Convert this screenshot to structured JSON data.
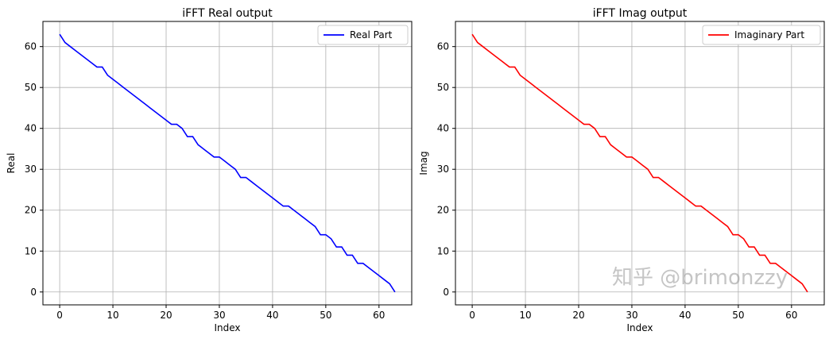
{
  "chart_data": [
    {
      "type": "line",
      "title": "iFFT Real output",
      "xlabel": "Index",
      "ylabel": "Real",
      "xlim": [
        -3.15,
        66.15
      ],
      "ylim": [
        -3.15,
        66.15
      ],
      "xticks": [
        0,
        10,
        20,
        30,
        40,
        50,
        60
      ],
      "yticks": [
        0,
        10,
        20,
        30,
        40,
        50,
        60
      ],
      "grid": true,
      "legend": "top-right",
      "series": [
        {
          "name": "Real Part",
          "color": "#0000ff",
          "x": [
            0,
            1,
            2,
            3,
            4,
            5,
            6,
            7,
            8,
            9,
            10,
            11,
            12,
            13,
            14,
            15,
            16,
            17,
            18,
            19,
            20,
            21,
            22,
            23,
            24,
            25,
            26,
            27,
            28,
            29,
            30,
            31,
            32,
            33,
            34,
            35,
            36,
            37,
            38,
            39,
            40,
            41,
            42,
            43,
            44,
            45,
            46,
            47,
            48,
            49,
            50,
            51,
            52,
            53,
            54,
            55,
            56,
            57,
            58,
            59,
            60,
            61,
            62,
            63
          ],
          "y": [
            63,
            61,
            60,
            59,
            58,
            57,
            56,
            55,
            55,
            53,
            52,
            51,
            50,
            49,
            48,
            47,
            46,
            45,
            44,
            43,
            42,
            41,
            41,
            40,
            38,
            38,
            36,
            35,
            34,
            33,
            33,
            32,
            31,
            30,
            28,
            28,
            27,
            26,
            25,
            24,
            23,
            22,
            21,
            21,
            20,
            19,
            18,
            17,
            16,
            14,
            14,
            13,
            11,
            11,
            9,
            9,
            7,
            7,
            6,
            5,
            4,
            3,
            2,
            0
          ]
        }
      ]
    },
    {
      "type": "line",
      "title": "iFFT Imag output",
      "xlabel": "Index",
      "ylabel": "Imag",
      "xlim": [
        -3.15,
        66.15
      ],
      "ylim": [
        -3.15,
        66.15
      ],
      "xticks": [
        0,
        10,
        20,
        30,
        40,
        50,
        60
      ],
      "yticks": [
        0,
        10,
        20,
        30,
        40,
        50,
        60
      ],
      "grid": true,
      "legend": "top-right",
      "series": [
        {
          "name": "Imaginary Part",
          "color": "#ff0000",
          "x": [
            0,
            1,
            2,
            3,
            4,
            5,
            6,
            7,
            8,
            9,
            10,
            11,
            12,
            13,
            14,
            15,
            16,
            17,
            18,
            19,
            20,
            21,
            22,
            23,
            24,
            25,
            26,
            27,
            28,
            29,
            30,
            31,
            32,
            33,
            34,
            35,
            36,
            37,
            38,
            39,
            40,
            41,
            42,
            43,
            44,
            45,
            46,
            47,
            48,
            49,
            50,
            51,
            52,
            53,
            54,
            55,
            56,
            57,
            58,
            59,
            60,
            61,
            62,
            63
          ],
          "y": [
            63,
            61,
            60,
            59,
            58,
            57,
            56,
            55,
            55,
            53,
            52,
            51,
            50,
            49,
            48,
            47,
            46,
            45,
            44,
            43,
            42,
            41,
            41,
            40,
            38,
            38,
            36,
            35,
            34,
            33,
            33,
            32,
            31,
            30,
            28,
            28,
            27,
            26,
            25,
            24,
            23,
            22,
            21,
            21,
            20,
            19,
            18,
            17,
            16,
            14,
            14,
            13,
            11,
            11,
            9,
            9,
            7,
            7,
            6,
            5,
            4,
            3,
            2,
            0
          ]
        }
      ]
    }
  ],
  "watermark": "知乎 @brimonzzy"
}
